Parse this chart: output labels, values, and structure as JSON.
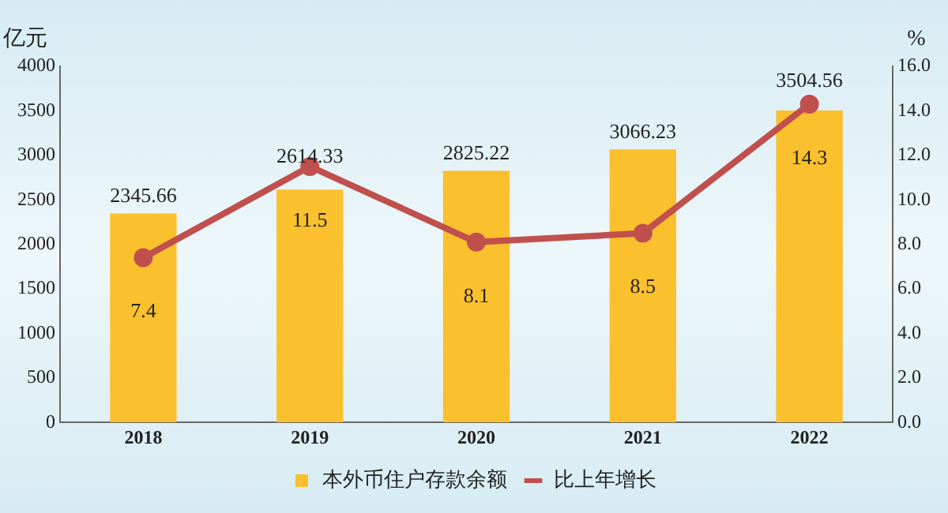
{
  "chart_data": {
    "type": "bar",
    "categories": [
      "2018",
      "2019",
      "2020",
      "2021",
      "2022"
    ],
    "ylabel": "亿元",
    "y2label": "%",
    "series": [
      {
        "name": "本外币住户存款余额",
        "color": "#fbc02d",
        "values": [
          2345.66,
          2614.33,
          2825.22,
          3066.23,
          3504.56
        ]
      },
      {
        "name": "比上年增长",
        "type": "line",
        "axis": "y2",
        "color": "#c0504d",
        "marker": "circle",
        "values": [
          7.4,
          11.5,
          8.1,
          8.5,
          14.3
        ]
      }
    ],
    "ylim": [
      0,
      4000
    ],
    "yticks": [
      0,
      500,
      1000,
      1500,
      2000,
      2500,
      3000,
      3500,
      4000
    ],
    "y2lim": [
      0,
      16
    ],
    "y2ticks": [
      {
        "value": 0,
        "label": "0.0"
      },
      {
        "value": 2,
        "label": "2.0"
      },
      {
        "value": 4,
        "label": "4.0"
      },
      {
        "value": 6,
        "label": "6.0"
      },
      {
        "value": 8,
        "label": "8.0"
      },
      {
        "value": 10,
        "label": "10.0"
      },
      {
        "value": 12,
        "label": "12.0"
      },
      {
        "value": 14,
        "label": "14.0"
      },
      {
        "value": 16,
        "label": "16.0"
      }
    ],
    "data_labels": true,
    "legend": "bottom",
    "grid": false
  }
}
